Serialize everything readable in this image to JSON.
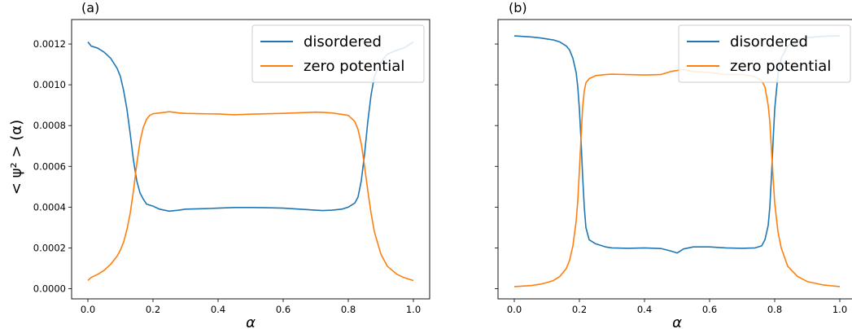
{
  "figure": {
    "ylabel": "< ψ² > (α)",
    "colors": {
      "disordered": "#1f77b4",
      "zero_potential": "#ff7f0e"
    }
  },
  "chart_data": [
    {
      "type": "line",
      "panel_label": "(a)",
      "xlabel": "α",
      "ylabel": "< ψ² > (α)",
      "xlim": [
        -0.05,
        1.05
      ],
      "ylim": [
        -5e-05,
        0.00132
      ],
      "xticks": [
        "0.0",
        "0.2",
        "0.4",
        "0.6",
        "0.8",
        "1.0"
      ],
      "xtick_values": [
        0.0,
        0.2,
        0.4,
        0.6,
        0.8,
        1.0
      ],
      "yticks": [
        "0.0000",
        "0.0002",
        "0.0004",
        "0.0006",
        "0.0008",
        "0.0010",
        "0.0012"
      ],
      "ytick_values": [
        0.0,
        0.0002,
        0.0004,
        0.0006,
        0.0008,
        0.001,
        0.0012
      ],
      "grid": false,
      "legend": "top-right",
      "series": [
        {
          "name": "disordered",
          "color": "#1f77b4",
          "x": [
            0.0,
            0.01,
            0.03,
            0.05,
            0.07,
            0.09,
            0.1,
            0.11,
            0.12,
            0.13,
            0.14,
            0.15,
            0.16,
            0.17,
            0.18,
            0.19,
            0.2,
            0.22,
            0.25,
            0.28,
            0.3,
            0.35,
            0.4,
            0.45,
            0.5,
            0.55,
            0.6,
            0.65,
            0.7,
            0.72,
            0.75,
            0.78,
            0.8,
            0.82,
            0.83,
            0.84,
            0.85,
            0.86,
            0.87,
            0.88,
            0.9,
            0.92,
            0.95,
            0.97,
            1.0
          ],
          "values": [
            0.00121,
            0.00119,
            0.00118,
            0.00116,
            0.00113,
            0.00108,
            0.00104,
            0.00097,
            0.00088,
            0.00076,
            0.00063,
            0.00053,
            0.00047,
            0.00044,
            0.000415,
            0.00041,
            0.000405,
            0.00039,
            0.00038,
            0.000385,
            0.00039,
            0.000392,
            0.000395,
            0.000398,
            0.000398,
            0.000397,
            0.000395,
            0.00039,
            0.000385,
            0.000383,
            0.000385,
            0.00039,
            0.0004,
            0.00042,
            0.00045,
            0.00053,
            0.00066,
            0.00082,
            0.00095,
            0.00104,
            0.00111,
            0.00115,
            0.00117,
            0.00118,
            0.00121
          ]
        },
        {
          "name": "zero potential",
          "color": "#ff7f0e",
          "x": [
            0.0,
            0.01,
            0.03,
            0.05,
            0.07,
            0.09,
            0.1,
            0.11,
            0.12,
            0.13,
            0.14,
            0.15,
            0.16,
            0.17,
            0.18,
            0.19,
            0.2,
            0.22,
            0.25,
            0.28,
            0.3,
            0.35,
            0.4,
            0.45,
            0.5,
            0.55,
            0.6,
            0.65,
            0.7,
            0.72,
            0.75,
            0.78,
            0.8,
            0.82,
            0.83,
            0.84,
            0.85,
            0.86,
            0.87,
            0.88,
            0.9,
            0.92,
            0.95,
            0.97,
            1.0
          ],
          "values": [
            4e-05,
            5.5e-05,
            7e-05,
            9e-05,
            0.00012,
            0.00016,
            0.00019,
            0.00023,
            0.00029,
            0.00037,
            0.00048,
            0.00061,
            0.00072,
            0.00079,
            0.00083,
            0.00085,
            0.000858,
            0.000862,
            0.000868,
            0.000862,
            0.00086,
            0.000858,
            0.000857,
            0.000853,
            0.000856,
            0.000858,
            0.00086,
            0.000863,
            0.000866,
            0.000865,
            0.000862,
            0.000855,
            0.00085,
            0.00082,
            0.00078,
            0.00071,
            0.0006,
            0.00048,
            0.00037,
            0.00028,
            0.00017,
            0.00011,
            7e-05,
            5.5e-05,
            4e-05
          ]
        }
      ]
    },
    {
      "type": "line",
      "panel_label": "(b)",
      "xlabel": "α",
      "xlim": [
        -0.05,
        1.05
      ],
      "ylim": [
        -5e-05,
        0.00132
      ],
      "xticks": [
        "0.0",
        "0.2",
        "0.4",
        "0.6",
        "0.8",
        "1.0"
      ],
      "xtick_values": [
        0.0,
        0.2,
        0.4,
        0.6,
        0.8,
        1.0
      ],
      "ytick_values": [
        0.0,
        0.0002,
        0.0004,
        0.0006,
        0.0008,
        0.001,
        0.0012
      ],
      "yticklabels_shown": false,
      "grid": false,
      "legend": "top-right",
      "series": [
        {
          "name": "disordered",
          "color": "#1f77b4",
          "x": [
            0.0,
            0.02,
            0.05,
            0.08,
            0.1,
            0.12,
            0.14,
            0.16,
            0.17,
            0.18,
            0.19,
            0.195,
            0.2,
            0.205,
            0.21,
            0.215,
            0.22,
            0.23,
            0.25,
            0.28,
            0.3,
            0.35,
            0.4,
            0.45,
            0.48,
            0.5,
            0.52,
            0.55,
            0.6,
            0.65,
            0.7,
            0.74,
            0.76,
            0.77,
            0.78,
            0.785,
            0.79,
            0.795,
            0.8,
            0.81,
            0.82,
            0.84,
            0.87,
            0.9,
            0.95,
            1.0
          ],
          "values": [
            0.00124,
            0.001238,
            0.001235,
            0.00123,
            0.001225,
            0.00122,
            0.00121,
            0.00119,
            0.00117,
            0.00113,
            0.00106,
            0.00099,
            0.00088,
            0.00073,
            0.00055,
            0.0004,
            0.0003,
            0.00024,
            0.00022,
            0.000205,
            0.0002,
            0.000198,
            0.0002,
            0.000197,
            0.000185,
            0.000175,
            0.000195,
            0.000205,
            0.000205,
            0.0002,
            0.000198,
            0.0002,
            0.00021,
            0.00024,
            0.00031,
            0.0004,
            0.00055,
            0.00072,
            0.00088,
            0.00105,
            0.00113,
            0.00119,
            0.00122,
            0.001232,
            0.001238,
            0.00124
          ]
        },
        {
          "name": "zero potential",
          "color": "#ff7f0e",
          "x": [
            0.0,
            0.02,
            0.05,
            0.08,
            0.1,
            0.12,
            0.14,
            0.16,
            0.17,
            0.18,
            0.19,
            0.195,
            0.2,
            0.205,
            0.21,
            0.215,
            0.22,
            0.23,
            0.25,
            0.28,
            0.3,
            0.35,
            0.4,
            0.45,
            0.48,
            0.5,
            0.52,
            0.55,
            0.6,
            0.65,
            0.7,
            0.74,
            0.76,
            0.77,
            0.78,
            0.785,
            0.79,
            0.795,
            0.8,
            0.81,
            0.82,
            0.84,
            0.87,
            0.9,
            0.95,
            1.0
          ],
          "values": [
            1e-05,
            1.2e-05,
            1.5e-05,
            2.2e-05,
            3e-05,
            4e-05,
            6e-05,
            0.0001,
            0.00014,
            0.00021,
            0.00033,
            0.00043,
            0.00058,
            0.00074,
            0.00089,
            0.00097,
            0.00101,
            0.00103,
            0.001045,
            0.00105,
            0.001052,
            0.00105,
            0.001048,
            0.00105,
            0.001065,
            0.00107,
            0.001075,
            0.001065,
            0.00106,
            0.00105,
            0.00105,
            0.00104,
            0.00102,
            0.00099,
            0.0009,
            0.00082,
            0.00068,
            0.00055,
            0.00042,
            0.00028,
            0.0002,
            0.00011,
            6e-05,
            3.5e-05,
            1.8e-05,
            1e-05
          ]
        }
      ]
    }
  ]
}
